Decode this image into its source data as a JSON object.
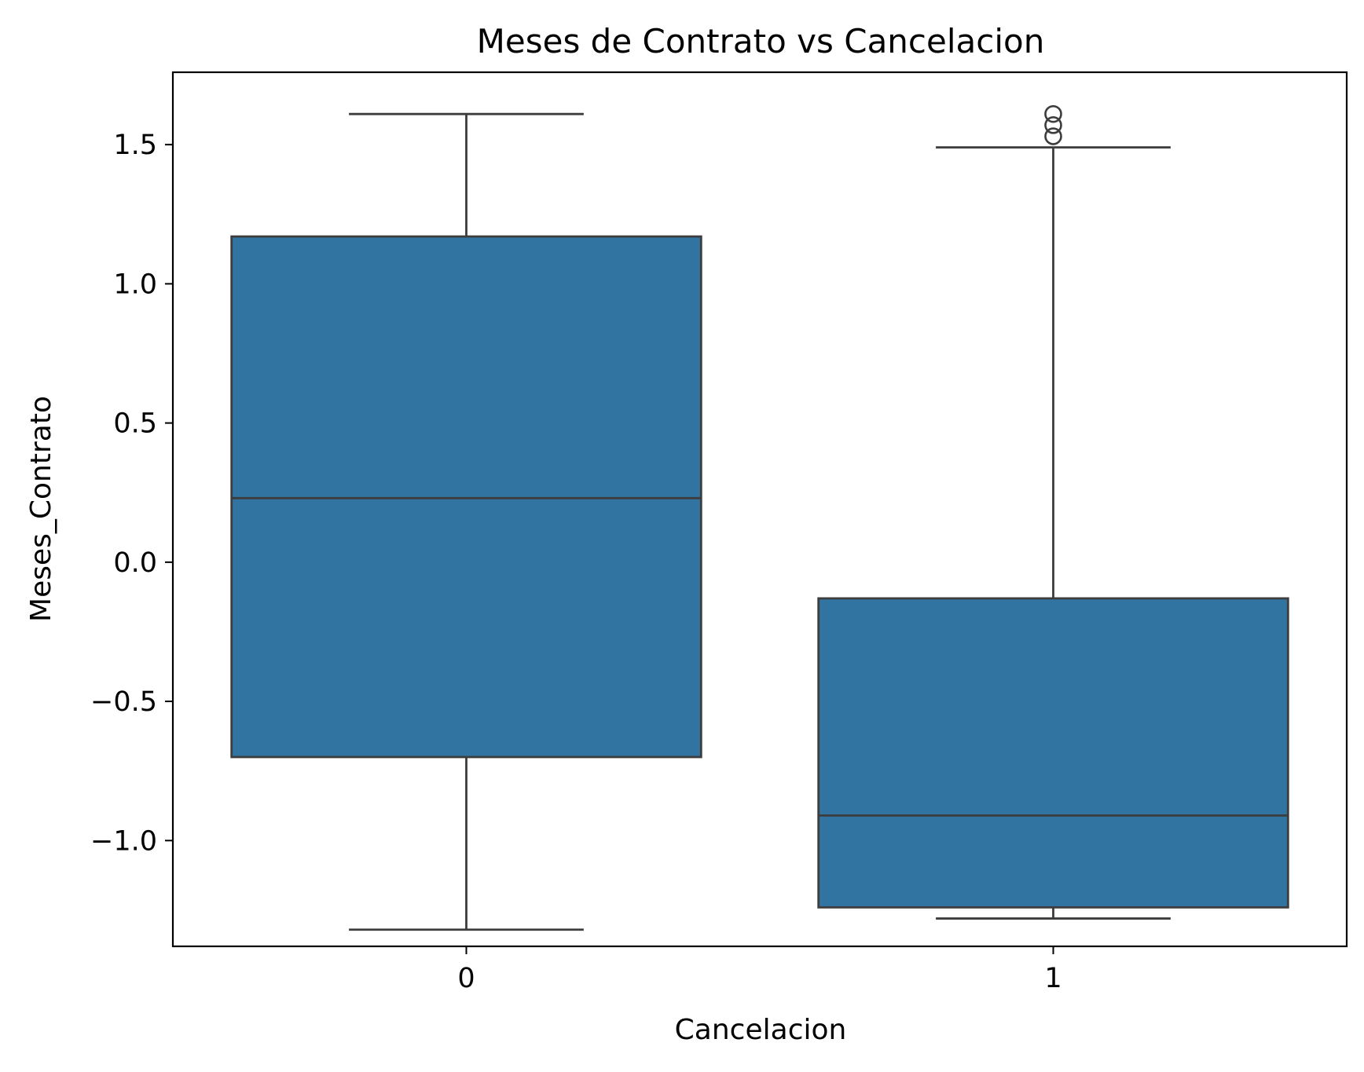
{
  "chart_data": {
    "type": "box",
    "title": "Meses de Contrato vs Cancelacion",
    "xlabel": "Cancelacion",
    "ylabel": "Meses_Contrato",
    "categories": [
      "0",
      "1"
    ],
    "ylim": [
      -1.38,
      1.76
    ],
    "yticks": [
      1.5,
      1.0,
      0.5,
      0.0,
      -0.5,
      -1.0
    ],
    "ytick_labels": [
      "1.5",
      "1.0",
      "0.5",
      "0.0",
      "−0.5",
      "−1.0"
    ],
    "boxes": [
      {
        "category": "0",
        "whisker_low": -1.32,
        "q1": -0.7,
        "median": 0.23,
        "q3": 1.17,
        "whisker_high": 1.61,
        "outliers": []
      },
      {
        "category": "1",
        "whisker_low": -1.28,
        "q1": -1.24,
        "median": -0.91,
        "q3": -0.13,
        "whisker_high": 1.49,
        "outliers": [
          1.53,
          1.57,
          1.61
        ]
      }
    ],
    "colors": {
      "box_fill": "#3274a1",
      "line": "#3d3d3d",
      "frame": "#000000"
    },
    "grid": false,
    "legend": "none"
  }
}
